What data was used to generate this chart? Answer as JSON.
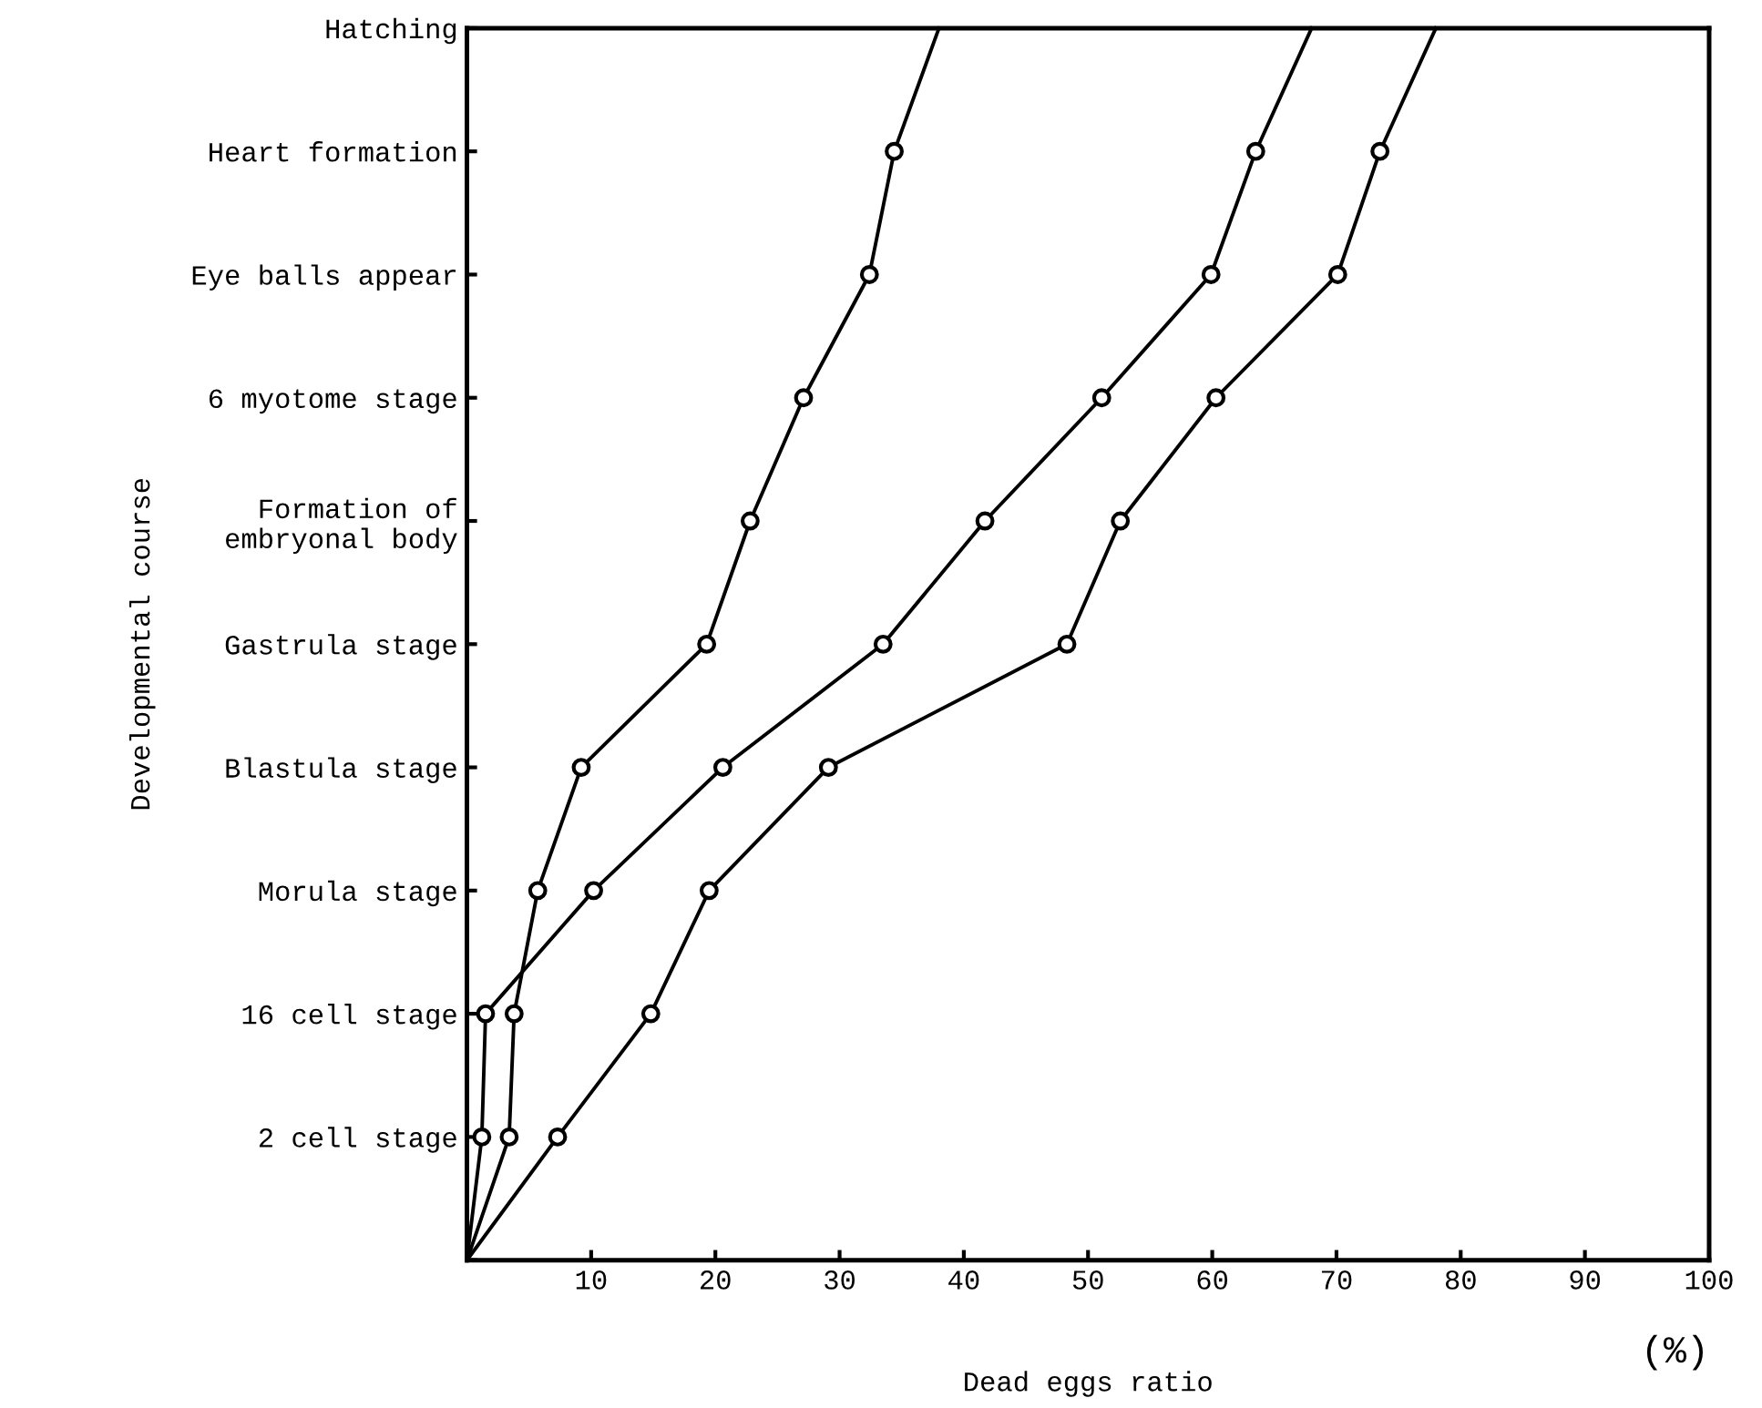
{
  "chart_data": {
    "type": "line",
    "orientation": "horizontal",
    "xlabel": "Dead eggs ratio",
    "ylabel": "Developmental course",
    "annotations": [
      "(%)"
    ],
    "xlim": [
      0,
      100
    ],
    "xticks": [
      10,
      20,
      30,
      40,
      50,
      60,
      70,
      80,
      90,
      100
    ],
    "categories": [
      "Hatching",
      "Heart formation",
      "Eye balls appear",
      "6 myotome stage",
      "Formation of\nembryonal body",
      "Gastrula stage",
      "Blastula stage",
      "Morula stage",
      "16 cell stage",
      "2 cell stage",
      null
    ],
    "grid": false,
    "legend": false,
    "marker": "circle",
    "line_style": "solid",
    "series": [
      {
        "color": "#000000",
        "values": [
          38,
          34.4,
          32.4,
          27.1,
          22.8,
          19.3,
          9.2,
          5.7,
          3.8,
          3.4,
          0
        ]
      },
      {
        "color": "#000000",
        "values": [
          68,
          63.5,
          59.9,
          51.1,
          41.7,
          33.5,
          20.6,
          10.2,
          1.5,
          1.2,
          0
        ]
      },
      {
        "color": "#000000",
        "values": [
          78,
          73.5,
          70.1,
          60.3,
          52.6,
          48.3,
          29.1,
          19.5,
          14.8,
          7.3,
          0
        ]
      }
    ]
  }
}
